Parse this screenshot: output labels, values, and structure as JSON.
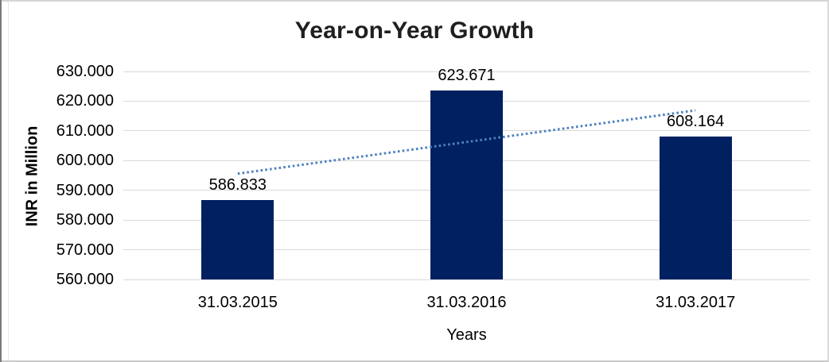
{
  "chart_data": {
    "type": "bar",
    "title": "Year-on-Year Growth",
    "xlabel": "Years",
    "ylabel": "INR in Million",
    "categories": [
      "31.03.2015",
      "31.03.2016",
      "31.03.2017"
    ],
    "values": [
      586.833,
      623.671,
      608.164
    ],
    "value_labels": [
      "586.833",
      "623.671",
      "608.164"
    ],
    "ylim": [
      560,
      630
    ],
    "ytick_step": 10,
    "yticks": [
      {
        "value": 630,
        "label": "630.000"
      },
      {
        "value": 620,
        "label": "620.000"
      },
      {
        "value": 610,
        "label": "610.000"
      },
      {
        "value": 600,
        "label": "600.000"
      },
      {
        "value": 590,
        "label": "590.000"
      },
      {
        "value": 580,
        "label": "580.000"
      },
      {
        "value": 570,
        "label": "570.000"
      },
      {
        "value": 560,
        "label": "560.000"
      }
    ],
    "grid": true,
    "legend": "none",
    "colors": {
      "bar": "#002060",
      "trendline": "#4F81BD",
      "gridline": "#D9D9D9",
      "axis_text": "#000000",
      "title_text": "#1F1F1F"
    },
    "trendline": {
      "type": "linear",
      "style": "dotted",
      "start_value": 595.6,
      "end_value": 616.9
    }
  }
}
